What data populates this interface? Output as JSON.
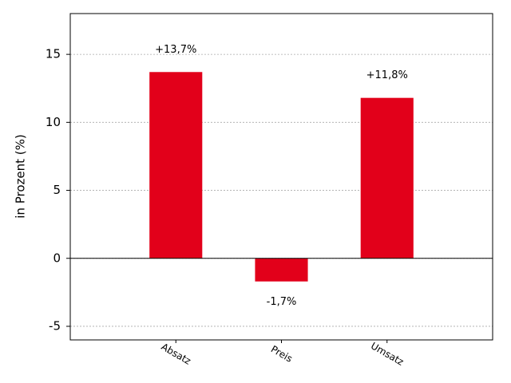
{
  "chart_data": {
    "type": "bar",
    "y_label": "in Prozent (%)",
    "categories": [
      "Absatz",
      "Preis",
      "Umsatz"
    ],
    "values": [
      13.7,
      -1.7,
      11.8
    ],
    "value_labels": [
      "+13,7%",
      "-1,7%",
      "+11,8%"
    ],
    "color": "#e2001a",
    "ylim": [
      -6,
      18
    ],
    "yticks": [
      -5,
      0,
      5,
      10,
      15
    ],
    "grid": true
  }
}
